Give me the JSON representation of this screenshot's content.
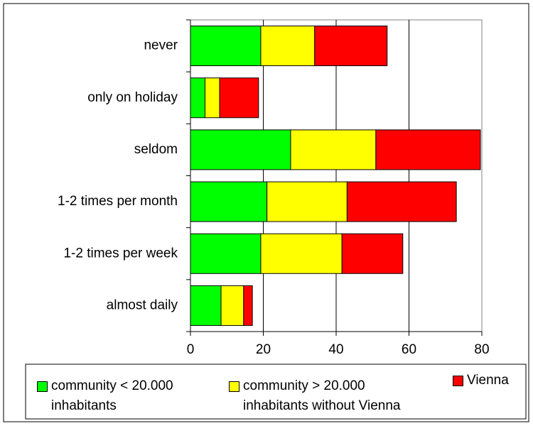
{
  "chart_data": {
    "type": "stacked_barh",
    "categories": [
      "never",
      "only on holiday",
      "seldom",
      "1-2 times per month",
      "1-2 times per week",
      "almost daily"
    ],
    "series": [
      {
        "name": "community < 20.000 inhabitants",
        "color": "#00ff00",
        "values": [
          19.3,
          4,
          27.5,
          21,
          19.3,
          8.4
        ]
      },
      {
        "name": "community > 20.000 inhabitants without Vienna",
        "color": "#ffff00",
        "values": [
          14.8,
          4,
          23.4,
          22,
          22.3,
          6.2
        ]
      },
      {
        "name": "Vienna",
        "color": "#ff0000",
        "values": [
          19.9,
          10.7,
          28.7,
          30,
          16.7,
          2.4
        ]
      }
    ],
    "xlim": [
      0,
      80
    ],
    "xticks": [
      0,
      20,
      40,
      60,
      80
    ],
    "grid": true,
    "legend": "bottom"
  }
}
